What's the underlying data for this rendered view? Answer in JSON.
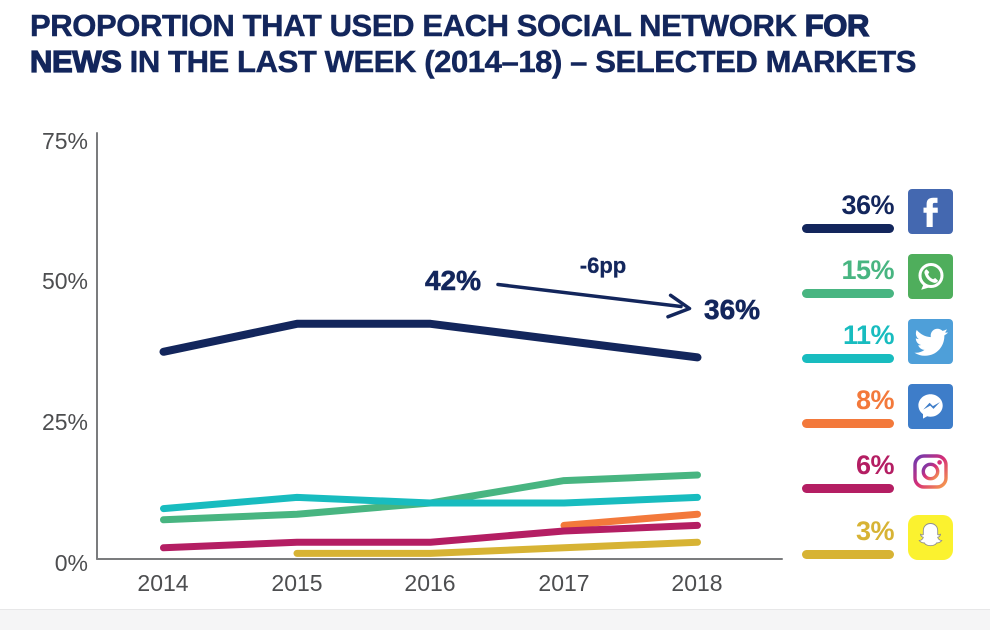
{
  "title": {
    "part1": "PROPORTION THAT USED EACH SOCIAL NETWORK ",
    "part2_bold": "FOR",
    "part3_bold": "NEWS",
    "part4": " IN THE LAST WEEK (2014–18) – SELECTED MARKETS"
  },
  "chart_data": {
    "type": "line",
    "title": "Proportion that used each social network for news in the last week (2014–18) – selected markets",
    "categories": [
      "2014",
      "2015",
      "2016",
      "2017",
      "2018"
    ],
    "y_tick_labels": [
      "75%",
      "50%",
      "25%",
      "0%"
    ],
    "ylim": [
      0,
      75
    ],
    "grid": false,
    "legend_position": "right",
    "series": [
      {
        "name": "Facebook",
        "legend_label": "36%",
        "color": "#13265C",
        "values": [
          37,
          42,
          42,
          39,
          36
        ]
      },
      {
        "name": "WhatsApp",
        "legend_label": "15%",
        "color": "#48B581",
        "values": [
          7,
          8,
          10,
          14,
          15
        ]
      },
      {
        "name": "Twitter",
        "legend_label": "11%",
        "color": "#18BCBF",
        "values": [
          9,
          11,
          10,
          10,
          11
        ]
      },
      {
        "name": "Facebook Messenger",
        "legend_label": "8%",
        "color": "#F3793B",
        "values": [
          null,
          null,
          null,
          6,
          8
        ]
      },
      {
        "name": "Instagram",
        "legend_label": "6%",
        "color": "#B41E63",
        "values": [
          2,
          3,
          3,
          5,
          6
        ]
      },
      {
        "name": "Snapchat",
        "legend_label": "3%",
        "color": "#D7B334",
        "values": [
          null,
          1,
          1,
          2,
          3
        ]
      }
    ],
    "annotation": {
      "start_label": "42%",
      "delta_label": "-6pp",
      "end_label": "36%"
    }
  }
}
